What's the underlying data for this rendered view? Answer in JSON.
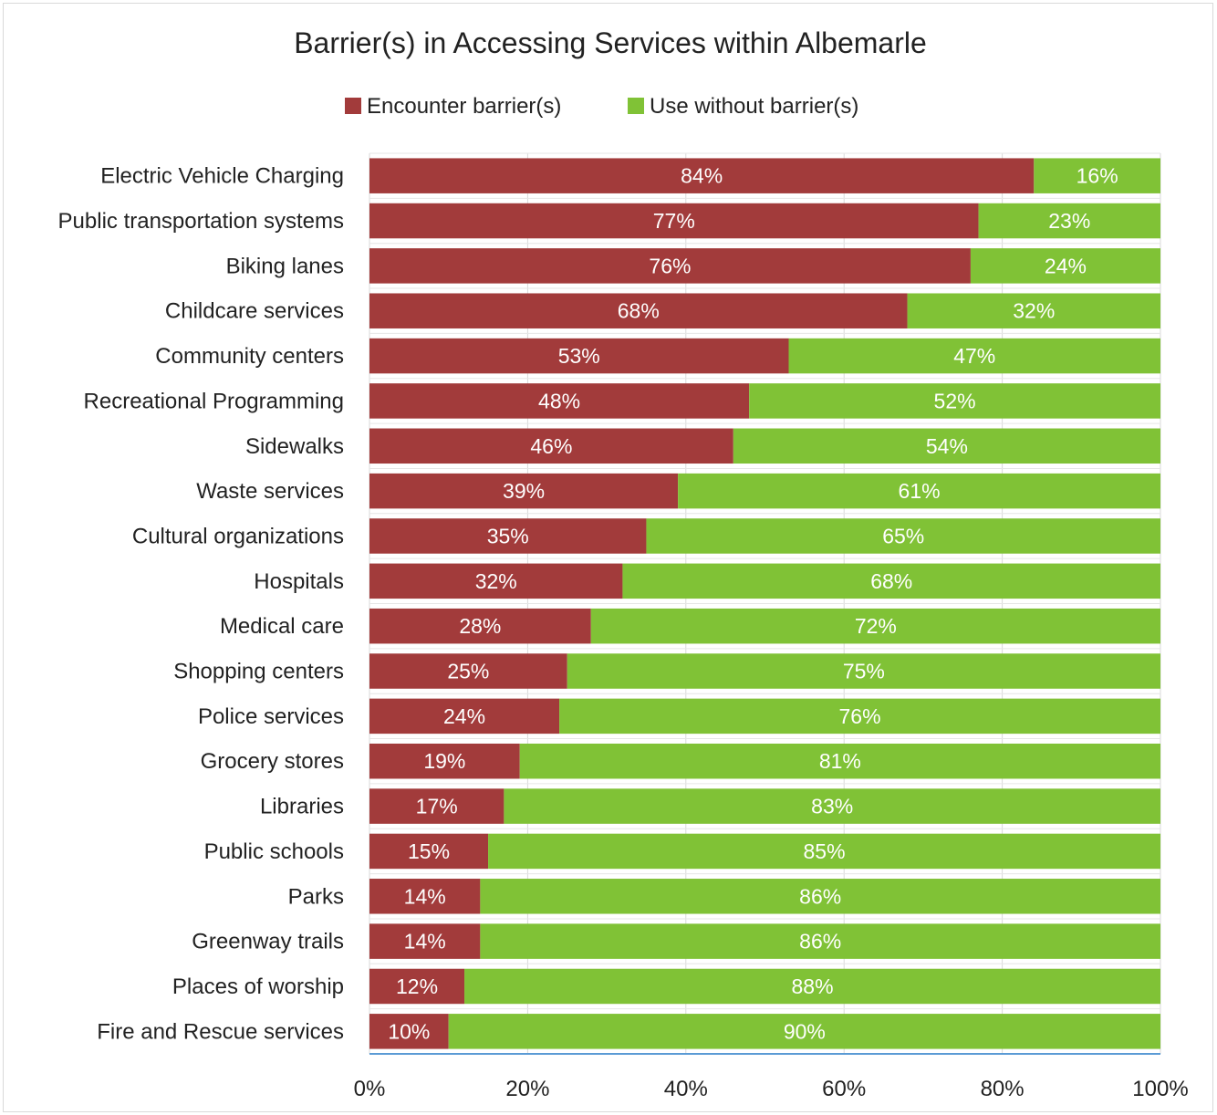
{
  "chart_data": {
    "type": "bar",
    "orientation": "horizontal",
    "stacked": true,
    "percent": true,
    "title": "Barrier(s) in Accessing Services within Albemarle",
    "legend": {
      "placement": "top"
    },
    "categories": [
      "Electric Vehicle Charging",
      "Public transportation systems",
      "Biking lanes",
      "Childcare services",
      "Community centers",
      "Recreational Programming",
      "Sidewalks",
      "Waste services",
      "Cultural organizations",
      "Hospitals",
      "Medical care",
      "Shopping centers",
      "Police services",
      "Grocery stores",
      "Libraries",
      "Public schools",
      "Parks",
      "Greenway trails",
      "Places of worship",
      "Fire and Rescue services"
    ],
    "series": [
      {
        "name": "Encounter barrier(s)",
        "color": "#a23b3b",
        "values": [
          84,
          77,
          76,
          68,
          53,
          48,
          46,
          39,
          35,
          32,
          28,
          25,
          24,
          19,
          17,
          15,
          14,
          14,
          12,
          10
        ]
      },
      {
        "name": "Use without barrier(s)",
        "color": "#80c236",
        "values": [
          16,
          23,
          24,
          32,
          47,
          52,
          54,
          61,
          65,
          68,
          72,
          75,
          76,
          81,
          83,
          85,
          86,
          86,
          88,
          90
        ]
      }
    ],
    "xlim": [
      0,
      100
    ],
    "xticks": [
      "0%",
      "20%",
      "40%",
      "60%",
      "80%",
      "100%"
    ],
    "grid": true
  }
}
